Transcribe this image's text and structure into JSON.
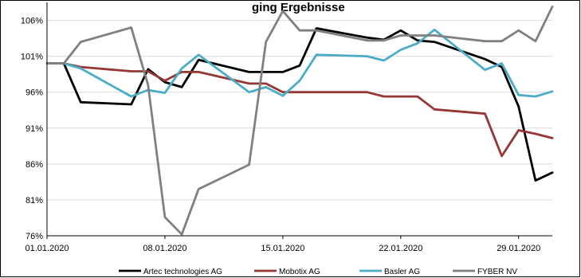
{
  "chart_data": {
    "type": "line",
    "title": "ging Ergebnisse",
    "xlabel": "",
    "ylabel": "",
    "x_ticks": [
      "01.01.2020",
      "08.01.2020",
      "15.01.2020",
      "22.01.2020",
      "29.01.2020"
    ],
    "y_ticks": [
      "76%",
      "81%",
      "86%",
      "91%",
      "96%",
      "101%",
      "106%"
    ],
    "ylim": [
      76,
      108.5
    ],
    "xlim": [
      "01.01.2020",
      "31.01.2020"
    ],
    "grid": "horizontal",
    "legend_position": "bottom",
    "series": [
      {
        "name": "Artec technologies AG",
        "color": "#000000",
        "points": [
          {
            "x": "01.01.2020",
            "y": 100
          },
          {
            "x": "02.01.2020",
            "y": 100
          },
          {
            "x": "03.01.2020",
            "y": 94.6
          },
          {
            "x": "06.01.2020",
            "y": 94.3
          },
          {
            "x": "07.01.2020",
            "y": 99.2
          },
          {
            "x": "08.01.2020",
            "y": 97.4
          },
          {
            "x": "09.01.2020",
            "y": 96.7
          },
          {
            "x": "10.01.2020",
            "y": 100.5
          },
          {
            "x": "13.01.2020",
            "y": 98.8
          },
          {
            "x": "14.01.2020",
            "y": 98.8
          },
          {
            "x": "15.01.2020",
            "y": 98.8
          },
          {
            "x": "16.01.2020",
            "y": 99.7
          },
          {
            "x": "17.01.2020",
            "y": 104.9
          },
          {
            "x": "20.01.2020",
            "y": 103.6
          },
          {
            "x": "21.01.2020",
            "y": 103.3
          },
          {
            "x": "22.01.2020",
            "y": 104.6
          },
          {
            "x": "23.01.2020",
            "y": 103.2
          },
          {
            "x": "24.01.2020",
            "y": 103
          },
          {
            "x": "27.01.2020",
            "y": 100.6
          },
          {
            "x": "28.01.2020",
            "y": 99.5
          },
          {
            "x": "29.01.2020",
            "y": 94
          },
          {
            "x": "30.01.2020",
            "y": 83.7
          },
          {
            "x": "31.01.2020",
            "y": 84.8
          }
        ]
      },
      {
        "name": "Mobotix AG",
        "color": "#953735",
        "points": [
          {
            "x": "01.01.2020",
            "y": 100
          },
          {
            "x": "02.01.2020",
            "y": 100
          },
          {
            "x": "03.01.2020",
            "y": 99.5
          },
          {
            "x": "06.01.2020",
            "y": 98.9
          },
          {
            "x": "07.01.2020",
            "y": 98.9
          },
          {
            "x": "08.01.2020",
            "y": 97.6
          },
          {
            "x": "09.01.2020",
            "y": 98.8
          },
          {
            "x": "10.01.2020",
            "y": 98.8
          },
          {
            "x": "13.01.2020",
            "y": 97.2
          },
          {
            "x": "14.01.2020",
            "y": 97.2
          },
          {
            "x": "15.01.2020",
            "y": 96
          },
          {
            "x": "16.01.2020",
            "y": 96
          },
          {
            "x": "17.01.2020",
            "y": 96
          },
          {
            "x": "20.01.2020",
            "y": 96
          },
          {
            "x": "21.01.2020",
            "y": 95.4
          },
          {
            "x": "22.01.2020",
            "y": 95.4
          },
          {
            "x": "23.01.2020",
            "y": 95.4
          },
          {
            "x": "24.01.2020",
            "y": 93.6
          },
          {
            "x": "27.01.2020",
            "y": 93
          },
          {
            "x": "28.01.2020",
            "y": 87.1
          },
          {
            "x": "29.01.2020",
            "y": 90.7
          },
          {
            "x": "30.01.2020",
            "y": 90.2
          },
          {
            "x": "31.01.2020",
            "y": 89.6
          }
        ]
      },
      {
        "name": "Basler AG",
        "color": "#4bacc6",
        "points": [
          {
            "x": "01.01.2020",
            "y": 100
          },
          {
            "x": "02.01.2020",
            "y": 100
          },
          {
            "x": "03.01.2020",
            "y": 99.3
          },
          {
            "x": "06.01.2020",
            "y": 95.4
          },
          {
            "x": "07.01.2020",
            "y": 96.3
          },
          {
            "x": "08.01.2020",
            "y": 95.9
          },
          {
            "x": "09.01.2020",
            "y": 99.3
          },
          {
            "x": "10.01.2020",
            "y": 101.2
          },
          {
            "x": "13.01.2020",
            "y": 96
          },
          {
            "x": "14.01.2020",
            "y": 96.7
          },
          {
            "x": "15.01.2020",
            "y": 95.5
          },
          {
            "x": "16.01.2020",
            "y": 97.6
          },
          {
            "x": "17.01.2020",
            "y": 101.2
          },
          {
            "x": "20.01.2020",
            "y": 101
          },
          {
            "x": "21.01.2020",
            "y": 100.4
          },
          {
            "x": "22.01.2020",
            "y": 101.9
          },
          {
            "x": "23.01.2020",
            "y": 102.8
          },
          {
            "x": "24.01.2020",
            "y": 104.7
          },
          {
            "x": "27.01.2020",
            "y": 99.1
          },
          {
            "x": "28.01.2020",
            "y": 100
          },
          {
            "x": "29.01.2020",
            "y": 95.6
          },
          {
            "x": "30.01.2020",
            "y": 95.4
          },
          {
            "x": "31.01.2020",
            "y": 96.1
          }
        ]
      },
      {
        "name": "FYBER NV",
        "color": "#808080",
        "points": [
          {
            "x": "01.01.2020",
            "y": 100
          },
          {
            "x": "02.01.2020",
            "y": 100
          },
          {
            "x": "03.01.2020",
            "y": 103
          },
          {
            "x": "06.01.2020",
            "y": 105
          },
          {
            "x": "07.01.2020",
            "y": 97
          },
          {
            "x": "08.01.2020",
            "y": 78.6
          },
          {
            "x": "09.01.2020",
            "y": 76.2
          },
          {
            "x": "10.01.2020",
            "y": 82.5
          },
          {
            "x": "13.01.2020",
            "y": 85.9
          },
          {
            "x": "14.01.2020",
            "y": 103
          },
          {
            "x": "15.01.2020",
            "y": 107.3
          },
          {
            "x": "16.01.2020",
            "y": 104.6
          },
          {
            "x": "17.01.2020",
            "y": 104.6
          },
          {
            "x": "20.01.2020",
            "y": 103.2
          },
          {
            "x": "21.01.2020",
            "y": 103.2
          },
          {
            "x": "22.01.2020",
            "y": 103.9
          },
          {
            "x": "23.01.2020",
            "y": 103.9
          },
          {
            "x": "24.01.2020",
            "y": 103.9
          },
          {
            "x": "27.01.2020",
            "y": 103.1
          },
          {
            "x": "28.01.2020",
            "y": 103.1
          },
          {
            "x": "29.01.2020",
            "y": 104.6
          },
          {
            "x": "30.01.2020",
            "y": 103.1
          },
          {
            "x": "31.01.2020",
            "y": 107.9
          }
        ]
      }
    ]
  }
}
